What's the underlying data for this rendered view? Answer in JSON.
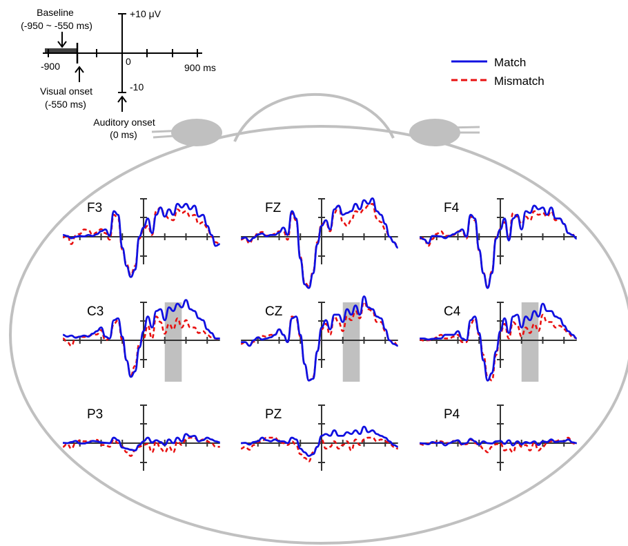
{
  "colors": {
    "match": "#1010e0",
    "mismatch": "#e81010",
    "head": "#c0c0c0",
    "highlight": "#c0c0c0",
    "axis": "#333333"
  },
  "legend": {
    "position": "top-right",
    "match": "Match",
    "mismatch": "Mismatch"
  },
  "scale_key": {
    "baseline_label": "Baseline",
    "baseline_range": "(-950 ~ -550 ms)",
    "x_min_label": "-900",
    "zero_label": "0",
    "x_max_label": "900 ms",
    "y_max_label": "+10 μV",
    "y_min_label": "-10",
    "visual_onset_label": "Visual onset",
    "visual_onset_time": "(-550 ms)",
    "auditory_onset_label": "Auditory onset",
    "auditory_onset_time": "(0 ms)"
  },
  "chart_data": {
    "type": "line",
    "x_unit": "ms",
    "y_unit": "μV",
    "xlim": [
      -950,
      900
    ],
    "ylim": [
      -10,
      10
    ],
    "grid": false,
    "baseline_window": [
      -950,
      -550
    ],
    "visual_onset": -550,
    "auditory_onset": 0,
    "x": [
      -950,
      -900,
      -850,
      -800,
      -750,
      -700,
      -650,
      -600,
      -550,
      -500,
      -450,
      -400,
      -350,
      -300,
      -250,
      -200,
      -150,
      -100,
      -50,
      0,
      50,
      100,
      150,
      200,
      250,
      300,
      350,
      400,
      450,
      500,
      550,
      600,
      650,
      700,
      750,
      800,
      850,
      900
    ],
    "series_names": [
      "Match",
      "Mismatch"
    ],
    "panels": [
      {
        "electrode": "F3",
        "match": [
          0.5,
          0.2,
          -0.4,
          0.0,
          0.2,
          0.1,
          0.5,
          0.2,
          0.7,
          1.5,
          2.0,
          0.3,
          7.0,
          6.0,
          -3.0,
          -8.0,
          -11.0,
          -9.0,
          0.0,
          2.5,
          5.0,
          1.0,
          6.0,
          8.0,
          5.5,
          7.5,
          6.0,
          9.0,
          8.0,
          9.0,
          7.5,
          8.5,
          5.5,
          6.0,
          3.0,
          0.5,
          -2.5,
          -2.0
        ],
        "mismatch": [
          -0.2,
          0.4,
          -2.0,
          0.3,
          0.8,
          2.0,
          1.8,
          0.5,
          1.2,
          2.1,
          1.0,
          -0.8,
          6.0,
          5.0,
          -3.5,
          -7.5,
          -10.5,
          -8.0,
          -0.5,
          2.0,
          3.0,
          0.5,
          7.0,
          8.0,
          6.0,
          5.0,
          4.5,
          7.5,
          6.5,
          7.0,
          5.5,
          6.0,
          3.5,
          4.0,
          2.5,
          0.0,
          -1.5,
          -2.0
        ]
      },
      {
        "electrode": "FZ",
        "match": [
          -0.5,
          -0.2,
          -1.2,
          -0.3,
          0.6,
          0.9,
          0.1,
          0.5,
          0.5,
          1.2,
          2.5,
          0.5,
          7.0,
          5.0,
          -6.0,
          -13.0,
          -14.0,
          -10.0,
          -2.0,
          3.0,
          4.5,
          2.0,
          7.5,
          8.5,
          6.0,
          6.5,
          7.0,
          9.0,
          7.5,
          10.0,
          9.0,
          10.5,
          7.0,
          6.0,
          3.5,
          0.0,
          -1.5,
          -3.0
        ],
        "mismatch": [
          -0.8,
          -0.3,
          -1.8,
          -0.2,
          1.0,
          1.3,
          0.3,
          0.4,
          0.8,
          1.5,
          1.5,
          -0.8,
          6.5,
          4.5,
          -5.5,
          -12.5,
          -13.5,
          -9.5,
          -1.5,
          3.5,
          4.0,
          1.5,
          6.5,
          8.5,
          4.0,
          3.0,
          4.5,
          7.0,
          6.5,
          7.5,
          8.5,
          9.0,
          5.0,
          4.0,
          2.0,
          0.0,
          -1.5,
          -2.5
        ]
      },
      {
        "electrode": "F4",
        "match": [
          -0.2,
          -0.7,
          -1.8,
          0.2,
          0.2,
          0.1,
          -0.4,
          0.2,
          0.7,
          1.3,
          2.0,
          0.0,
          6.0,
          5.0,
          -3.5,
          -10.0,
          -14.0,
          -10.0,
          -0.5,
          2.0,
          5.0,
          -1.0,
          5.0,
          6.0,
          2.0,
          7.0,
          6.5,
          8.5,
          7.5,
          8.0,
          6.0,
          8.0,
          5.0,
          5.0,
          3.5,
          1.0,
          0.5,
          -0.5
        ],
        "mismatch": [
          -0.5,
          -0.3,
          -2.5,
          -0.6,
          0.8,
          1.5,
          0.2,
          0.3,
          0.5,
          1.5,
          1.6,
          -0.5,
          5.5,
          4.5,
          -3.8,
          -9.8,
          -13.8,
          -9.5,
          -0.2,
          2.2,
          4.0,
          -0.5,
          6.5,
          5.5,
          3.5,
          5.5,
          4.5,
          7.0,
          6.0,
          6.5,
          5.5,
          7.0,
          4.5,
          5.0,
          3.5,
          1.0,
          0.5,
          0.8
        ]
      },
      {
        "electrode": "C3",
        "match": [
          1.5,
          1.0,
          1.3,
          0.7,
          1.0,
          1.3,
          1.0,
          1.8,
          2.5,
          3.5,
          1.0,
          0.5,
          5.5,
          6.0,
          1.0,
          -5.5,
          -10.0,
          -8.5,
          -2.0,
          2.5,
          6.5,
          3.5,
          8.0,
          8.5,
          5.5,
          9.0,
          8.0,
          10.0,
          9.0,
          11.0,
          8.5,
          8.0,
          6.0,
          5.5,
          3.0,
          2.0,
          0.5,
          0.5
        ],
        "mismatch": [
          0.5,
          -0.5,
          -1.5,
          0.8,
          1.0,
          0.9,
          1.2,
          1.5,
          1.6,
          2.8,
          0.0,
          0.5,
          4.5,
          5.5,
          0.0,
          -5.5,
          -9.5,
          -7.0,
          -1.0,
          0.5,
          4.0,
          0.5,
          6.5,
          5.0,
          1.8,
          4.5,
          3.0,
          6.0,
          3.5,
          5.5,
          3.5,
          3.5,
          2.0,
          2.5,
          1.5,
          0.8,
          0.5,
          0.0
        ],
        "highlight_ms": [
          250,
          450
        ]
      },
      {
        "electrode": "CZ",
        "match": [
          -0.5,
          -0.5,
          -1.5,
          0.0,
          0.8,
          0.2,
          0.5,
          0.8,
          1.5,
          3.0,
          1.5,
          -0.5,
          6.0,
          6.5,
          1.5,
          -6.5,
          -11.0,
          -10.5,
          -3.0,
          3.5,
          5.5,
          3.0,
          7.0,
          7.0,
          5.0,
          8.5,
          7.0,
          9.5,
          7.0,
          12.0,
          9.0,
          8.5,
          6.5,
          6.0,
          3.0,
          0.0,
          -1.0,
          -1.5
        ],
        "mismatch": [
          -1.0,
          -0.5,
          -1.5,
          -0.4,
          0.8,
          1.2,
          1.0,
          1.5,
          1.5,
          3.0,
          1.5,
          -0.5,
          6.5,
          6.0,
          1.0,
          -6.5,
          -11.0,
          -10.0,
          -3.0,
          3.0,
          4.5,
          1.5,
          6.5,
          5.0,
          2.5,
          6.5,
          5.5,
          8.0,
          6.0,
          10.5,
          8.5,
          8.0,
          5.0,
          5.0,
          2.5,
          0.0,
          -0.5,
          -1.5
        ],
        "highlight_ms": [
          250,
          450
        ]
      },
      {
        "electrode": "C4",
        "match": [
          0.5,
          0.5,
          0.2,
          0.4,
          0.5,
          0.5,
          1.5,
          1.5,
          1.5,
          2.5,
          0.5,
          0.0,
          5.5,
          6.5,
          2.0,
          -5.5,
          -11.0,
          -9.0,
          -3.0,
          2.5,
          6.0,
          2.0,
          6.5,
          7.0,
          3.5,
          6.5,
          5.5,
          8.0,
          6.5,
          10.0,
          8.0,
          8.0,
          6.5,
          6.0,
          4.0,
          2.5,
          1.5,
          0.5
        ],
        "mismatch": [
          0.2,
          -0.1,
          0.0,
          0.2,
          0.8,
          1.5,
          0.5,
          0.5,
          1.0,
          1.5,
          -0.5,
          -0.5,
          4.5,
          6.0,
          1.5,
          -4.0,
          -10.0,
          -11.0,
          -4.0,
          2.0,
          4.5,
          0.5,
          5.0,
          4.0,
          1.0,
          3.5,
          2.0,
          4.5,
          2.5,
          7.0,
          5.0,
          5.0,
          3.5,
          4.0,
          3.0,
          2.0,
          1.0,
          0.5
        ],
        "highlight_ms": [
          250,
          450
        ]
      },
      {
        "electrode": "P3",
        "match": [
          0.1,
          0.0,
          0.3,
          0.6,
          -0.1,
          -0.1,
          0.2,
          0.6,
          0.5,
          0.2,
          0.1,
          0.0,
          1.5,
          0.8,
          -1.2,
          -1.5,
          -1.8,
          -2.0,
          -0.5,
          0.5,
          1.5,
          0.2,
          0.8,
          0.3,
          -0.5,
          1.0,
          0.0,
          1.5,
          0.5,
          2.5,
          1.8,
          2.0,
          0.5,
          0.8,
          1.5,
          1.0,
          0.5,
          0.2
        ],
        "mismatch": [
          -1.0,
          -0.2,
          -1.5,
          0.0,
          0.8,
          0.5,
          0.5,
          0.6,
          0.9,
          -0.5,
          -0.5,
          -1.0,
          1.0,
          0.0,
          -1.0,
          -2.5,
          -3.5,
          -2.0,
          -1.0,
          -0.5,
          -0.2,
          -2.5,
          0.5,
          -1.5,
          -2.5,
          -1.0,
          -2.5,
          0.5,
          -0.5,
          1.0,
          1.5,
          1.5,
          0.5,
          1.0,
          0.5,
          0.0,
          -1.0,
          -1.0
        ]
      },
      {
        "electrode": "PZ",
        "match": [
          0.0,
          0.1,
          -0.4,
          0.3,
          0.5,
          1.5,
          0.8,
          0.5,
          1.0,
          0.5,
          0.5,
          0.0,
          1.5,
          1.0,
          -1.5,
          -2.5,
          -3.5,
          -3.0,
          -1.0,
          2.0,
          2.5,
          2.0,
          3.5,
          2.0,
          2.0,
          3.0,
          2.5,
          3.5,
          2.5,
          4.5,
          3.0,
          3.5,
          2.5,
          2.0,
          1.5,
          0.5,
          -0.5,
          -1.0
        ],
        "mismatch": [
          -1.5,
          -1.0,
          -1.8,
          -0.5,
          0.3,
          0.6,
          1.5,
          1.5,
          1.5,
          0.5,
          0.0,
          -0.5,
          0.5,
          -0.5,
          -3.0,
          -4.0,
          -5.0,
          -2.5,
          -1.0,
          1.0,
          -1.5,
          -1.0,
          0.5,
          -1.5,
          -0.5,
          0.5,
          -2.0,
          1.0,
          -0.5,
          1.0,
          1.5,
          1.5,
          0.5,
          1.0,
          0.5,
          0.0,
          -1.0,
          -1.5
        ]
      },
      {
        "electrode": "P4",
        "match": [
          0.0,
          -0.1,
          -0.3,
          0.3,
          0.0,
          0.2,
          -0.6,
          0.0,
          0.5,
          0.8,
          -0.3,
          0.0,
          1.2,
          0.5,
          -0.4,
          0.5,
          0.0,
          -0.1,
          0.5,
          0.6,
          -0.2,
          0.8,
          -0.6,
          0.5,
          -0.3,
          0.3,
          0.0,
          0.5,
          -0.5,
          0.5,
          0.3,
          1.0,
          0.3,
          0.5,
          0.5,
          1.0,
          0.2,
          0.0
        ],
        "mismatch": [
          -0.2,
          -0.5,
          -0.1,
          0.0,
          0.3,
          0.5,
          0.1,
          0.0,
          0.6,
          0.5,
          -0.5,
          -0.3,
          1.0,
          0.0,
          -0.5,
          -1.5,
          -2.5,
          -1.0,
          -0.3,
          0.0,
          -2.0,
          -1.5,
          -2.5,
          0.5,
          -1.0,
          -0.5,
          -2.0,
          0.2,
          -2.0,
          -1.0,
          0.0,
          0.5,
          0.5,
          0.8,
          0.5,
          1.5,
          0.0,
          -0.5
        ]
      }
    ]
  }
}
